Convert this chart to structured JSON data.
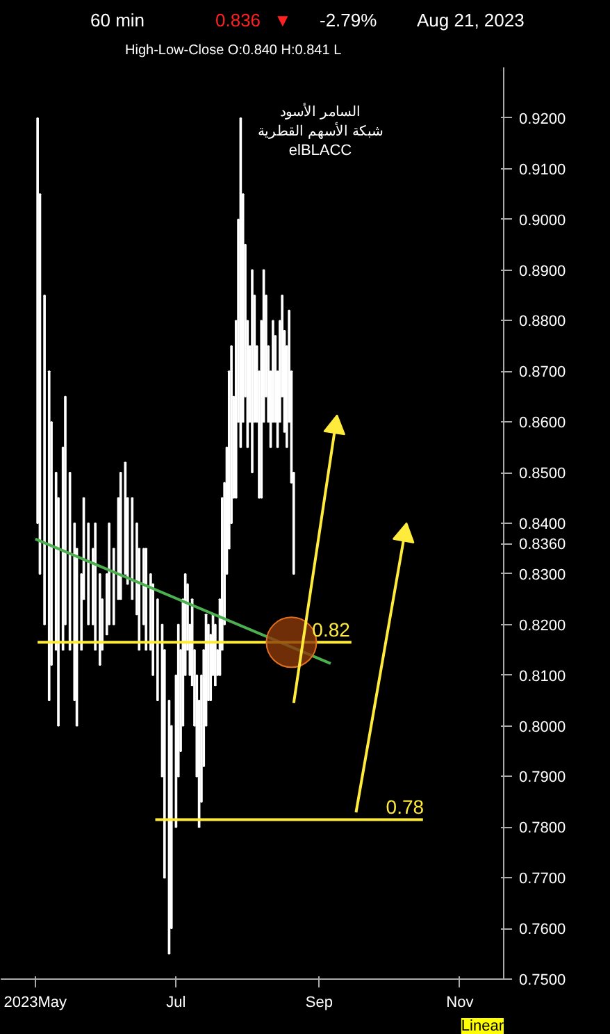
{
  "chart_data": {
    "type": "bar",
    "title": "60 min",
    "subtitle": "High-Low-Close O:0.840 H:0.841 L",
    "annotations": [
      "0.836",
      "▼",
      "-2.79%",
      "Aug 21, 2023",
      "السامر الأسود",
      "شبكة الأسهم القطرية",
      "elBLACC",
      "Linear",
      {
        "text": "0.82",
        "x": "2023-08-29",
        "y": 0.8165
      },
      {
        "text": "0.78",
        "x": "2023-09-30",
        "y": 0.7815
      }
    ],
    "xlim": [
      "2023-04-16",
      "2023-11-20"
    ],
    "ylim": [
      0.75,
      0.93
    ],
    "xticks": [
      {
        "value": "2023-05-01",
        "label": "2023May"
      },
      {
        "value": "2023-07-01",
        "label": "Jul"
      },
      {
        "value": "2023-09-01",
        "label": "Sep"
      },
      {
        "value": "2023-11-01",
        "label": "Nov"
      }
    ],
    "yticks": [
      {
        "value": 0.75,
        "label": "0.7500"
      },
      {
        "value": 0.76,
        "label": "0.7600"
      },
      {
        "value": 0.77,
        "label": "0.7700"
      },
      {
        "value": 0.78,
        "label": "0.7800"
      },
      {
        "value": 0.79,
        "label": "0.7900"
      },
      {
        "value": 0.8,
        "label": "0.8000"
      },
      {
        "value": 0.81,
        "label": "0.8100"
      },
      {
        "value": 0.82,
        "label": "0.8200"
      },
      {
        "value": 0.83,
        "label": "0.8300"
      },
      {
        "value": 0.836,
        "label": "0.8360"
      },
      {
        "value": 0.84,
        "label": "0.8400"
      },
      {
        "value": 0.85,
        "label": "0.8500"
      },
      {
        "value": 0.86,
        "label": "0.8600"
      },
      {
        "value": 0.87,
        "label": "0.8700"
      },
      {
        "value": 0.88,
        "label": "0.8800"
      },
      {
        "value": 0.89,
        "label": "0.8900"
      },
      {
        "value": 0.9,
        "label": "0.9000"
      },
      {
        "value": 0.91,
        "label": "0.9100"
      },
      {
        "value": 0.92,
        "label": "0.9200"
      }
    ],
    "grid": false,
    "series": [
      {
        "color": "#ffffff",
        "x": [
          "2023-05-02",
          "2023-05-03",
          "2023-05-05",
          "2023-05-07",
          "2023-05-08",
          "2023-05-10",
          "2023-05-11",
          "2023-05-13",
          "2023-05-14",
          "2023-05-16",
          "2023-05-18",
          "2023-05-19",
          "2023-05-21",
          "2023-05-22",
          "2023-05-24",
          "2023-05-26",
          "2023-05-27",
          "2023-05-29",
          "2023-05-30",
          "2023-06-01",
          "2023-06-02",
          "2023-06-04",
          "2023-06-06",
          "2023-06-07",
          "2023-06-09",
          "2023-06-10",
          "2023-06-12",
          "2023-06-14",
          "2023-06-15",
          "2023-06-17",
          "2023-06-18",
          "2023-06-20",
          "2023-06-21",
          "2023-06-23",
          "2023-06-25",
          "2023-06-26",
          "2023-06-28",
          "2023-06-29",
          "2023-07-01",
          "2023-07-02",
          "2023-07-03",
          "2023-07-04",
          "2023-07-05",
          "2023-07-06",
          "2023-07-07",
          "2023-07-08",
          "2023-07-09",
          "2023-07-10",
          "2023-07-11",
          "2023-07-12",
          "2023-07-13",
          "2023-07-14",
          "2023-07-15",
          "2023-07-16",
          "2023-07-17",
          "2023-07-18",
          "2023-07-19",
          "2023-07-20",
          "2023-07-21",
          "2023-07-22",
          "2023-07-23",
          "2023-07-24",
          "2023-07-25",
          "2023-07-26",
          "2023-07-27",
          "2023-07-28",
          "2023-07-29",
          "2023-07-30",
          "2023-07-31",
          "2023-08-01",
          "2023-08-02",
          "2023-08-03",
          "2023-08-04",
          "2023-08-05",
          "2023-08-06",
          "2023-08-07",
          "2023-08-08",
          "2023-08-09",
          "2023-08-10",
          "2023-08-11",
          "2023-08-12",
          "2023-08-13",
          "2023-08-14",
          "2023-08-15",
          "2023-08-16",
          "2023-08-17",
          "2023-08-18",
          "2023-08-19",
          "2023-08-20",
          "2023-08-21"
        ],
        "base": [
          0.84,
          0.83,
          0.82,
          0.805,
          0.812,
          0.815,
          0.8,
          0.815,
          0.82,
          0.815,
          0.805,
          0.8,
          0.815,
          0.825,
          0.82,
          0.82,
          0.815,
          0.812,
          0.815,
          0.818,
          0.82,
          0.82,
          0.825,
          0.825,
          0.83,
          0.828,
          0.825,
          0.822,
          0.815,
          0.82,
          0.815,
          0.815,
          0.81,
          0.805,
          0.79,
          0.77,
          0.755,
          0.76,
          0.78,
          0.79,
          0.795,
          0.8,
          0.81,
          0.815,
          0.81,
          0.808,
          0.8,
          0.79,
          0.78,
          0.785,
          0.792,
          0.8,
          0.805,
          0.805,
          0.81,
          0.808,
          0.81,
          0.81,
          0.815,
          0.82,
          0.83,
          0.835,
          0.84,
          0.845,
          0.845,
          0.86,
          0.855,
          0.86,
          0.865,
          0.855,
          0.86,
          0.85,
          0.86,
          0.86,
          0.845,
          0.845,
          0.86,
          0.865,
          0.86,
          0.855,
          0.86,
          0.86,
          0.855,
          0.86,
          0.865,
          0.858,
          0.855,
          0.86,
          0.848,
          0.83
        ],
        "values": [
          0.08,
          0.075,
          0.065,
          0.065,
          0.048,
          0.035,
          0.045,
          0.04,
          0.045,
          0.035,
          0.035,
          0.035,
          0.015,
          0.02,
          0.02,
          0.015,
          0.025,
          0.018,
          0.01,
          0.012,
          0.02,
          0.015,
          0.02,
          0.025,
          0.022,
          0.017,
          0.02,
          0.018,
          0.02,
          0.015,
          0.02,
          0.015,
          0.018,
          0.02,
          0.03,
          0.045,
          0.05,
          0.04,
          0.03,
          0.03,
          0.02,
          0.025,
          0.02,
          0.013,
          0.01,
          0.017,
          0.015,
          0.02,
          0.025,
          0.025,
          0.023,
          0.022,
          0.015,
          0.013,
          0.012,
          0.012,
          0.005,
          0.015,
          0.03,
          0.028,
          0.025,
          0.035,
          0.035,
          0.02,
          0.035,
          0.04,
          0.065,
          0.045,
          0.03,
          0.025,
          0.015,
          0.04,
          0.025,
          0.015,
          0.025,
          0.035,
          0.03,
          0.02,
          0.015,
          0.015,
          0.02,
          0.017,
          0.015,
          0.02,
          0.02,
          0.02,
          0.02,
          0.022,
          0.022,
          0.02
        ]
      },
      {
        "type": "line",
        "color": "#4caf50",
        "x": [
          "2023-05-01",
          "2023-09-06"
        ],
        "values": [
          0.8369,
          0.8123
        ]
      },
      {
        "type": "line",
        "color": "#ffeb3b",
        "x": [
          "2023-05-02",
          "2023-09-15"
        ],
        "values": [
          0.8165,
          0.8165
        ]
      },
      {
        "type": "line",
        "color": "#ffeb3b",
        "x": [
          "2023-06-22",
          "2023-10-16"
        ],
        "values": [
          0.7815,
          0.7815
        ]
      },
      {
        "type": "scatter",
        "color": "#8b3a0a",
        "x": [
          "2023-08-20"
        ],
        "values": [
          0.8165
        ]
      },
      {
        "type": "line",
        "marker": "triangle",
        "color": "#ffeb3b",
        "x": [
          "2023-08-21",
          "2023-09-08"
        ],
        "values": [
          0.8045,
          0.859
        ]
      },
      {
        "type": "line",
        "marker": "triangle",
        "color": "#ffeb3b",
        "x": [
          "2023-09-17",
          "2023-10-08"
        ],
        "values": [
          0.7829,
          0.8377
        ]
      }
    ]
  }
}
